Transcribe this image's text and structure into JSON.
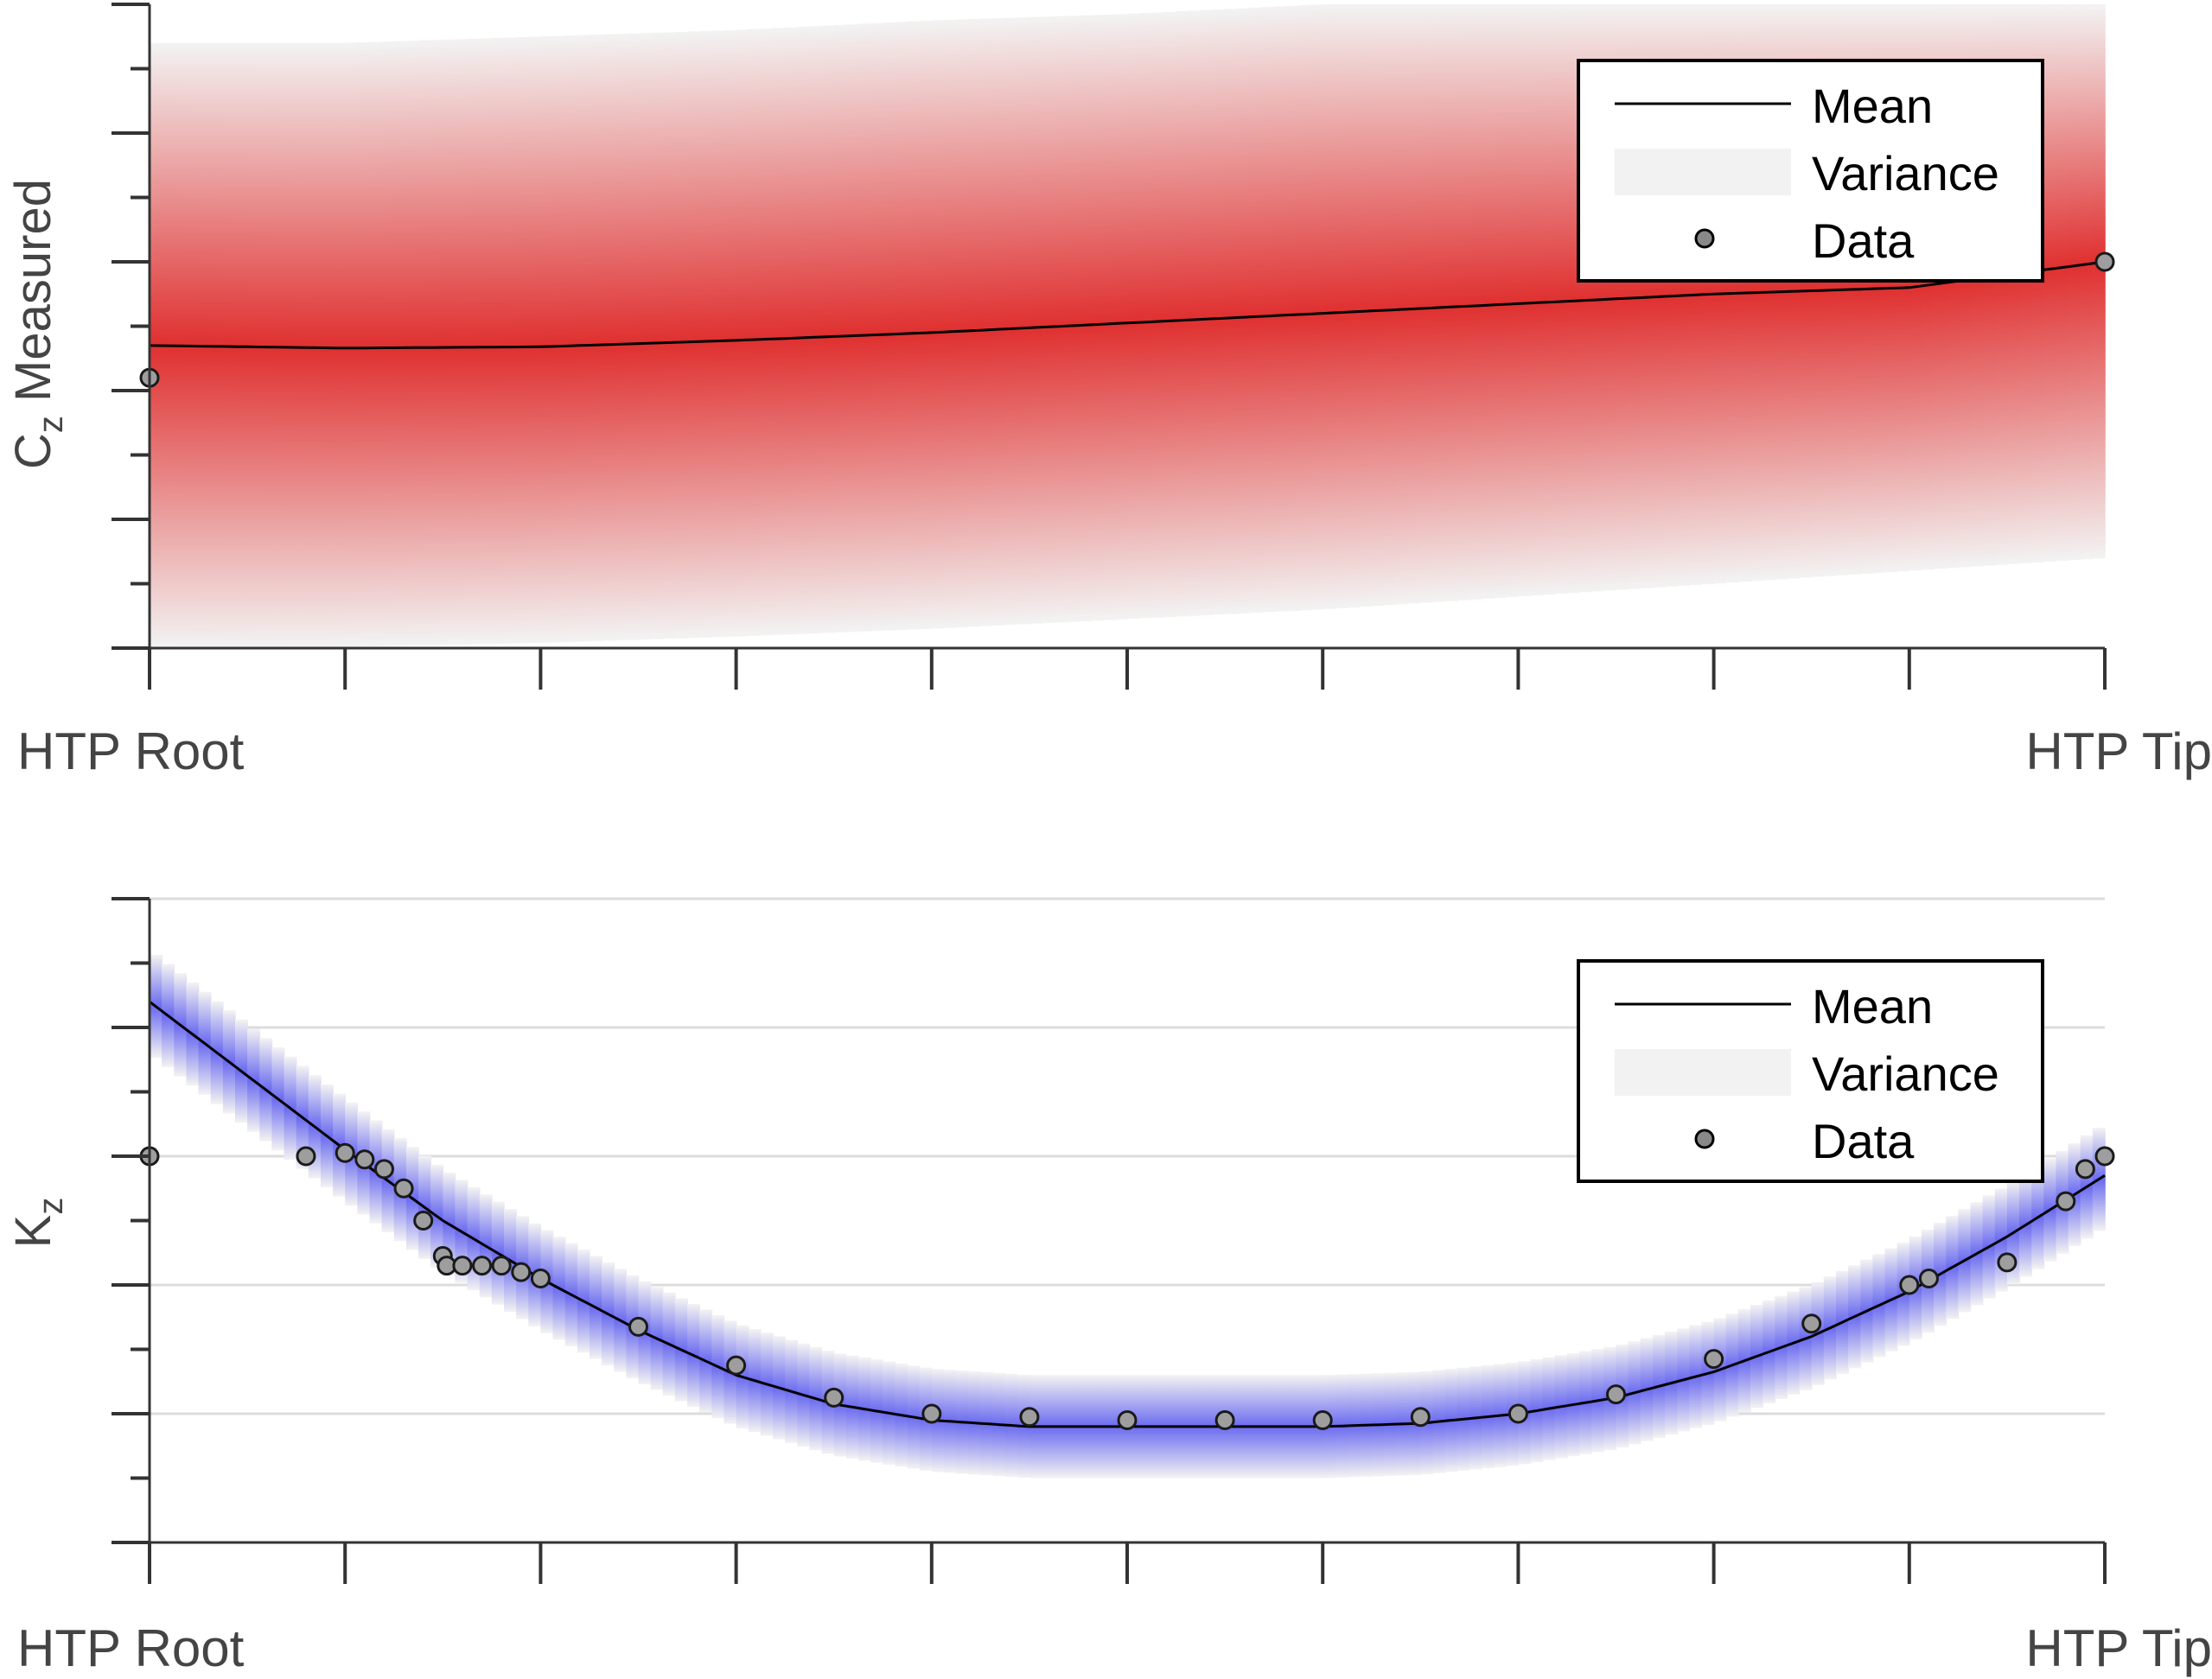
{
  "chart_data": [
    {
      "type": "line",
      "ylabel_main": "C",
      "ylabel_sub": "z",
      "ylabel_rest": " Measured",
      "x_tick_labels": [
        "HTP Root",
        "HTP Tip"
      ],
      "x_ticks": [
        0,
        0.1,
        0.2,
        0.3,
        0.4,
        0.5,
        0.6,
        0.7,
        0.8,
        0.9,
        1.0
      ],
      "y_ticks": [
        0,
        0.1,
        0.2,
        0.3,
        0.4,
        0.5,
        0.6,
        0.7,
        0.8,
        0.9,
        1.0
      ],
      "xlim": [
        0,
        1
      ],
      "ylim": [
        0,
        1
      ],
      "grid": false,
      "legend_position": "top-right",
      "legend": [
        "Mean",
        "Variance",
        "Data"
      ],
      "band_color": "#e03030",
      "series": [
        {
          "x": [
            0,
            0.1,
            0.2,
            0.3,
            0.4,
            0.5,
            0.6,
            0.7,
            0.8,
            0.9,
            1.0
          ],
          "mean": [
            0.47,
            0.466,
            0.468,
            0.478,
            0.49,
            0.505,
            0.52,
            0.535,
            0.55,
            0.56,
            0.6
          ],
          "lower": [
            0.0,
            0.002,
            0.008,
            0.018,
            0.03,
            0.045,
            0.06,
            0.08,
            0.1,
            0.12,
            0.14
          ],
          "upper": [
            0.94,
            0.94,
            0.95,
            0.96,
            0.975,
            0.985,
            1.0,
            1.0,
            1.0,
            1.0,
            1.0
          ]
        }
      ],
      "data_points": {
        "x": [
          0.0,
          1.0
        ],
        "y": [
          0.42,
          0.6
        ]
      }
    },
    {
      "type": "line",
      "ylabel_main": "K",
      "ylabel_sub": "z",
      "ylabel_rest": "",
      "x_tick_labels": [
        "HTP Root",
        "HTP Tip"
      ],
      "x_ticks": [
        0,
        0.1,
        0.2,
        0.3,
        0.4,
        0.5,
        0.6,
        0.7,
        0.8,
        0.9,
        1.0
      ],
      "y_ticks": [
        0,
        0.1,
        0.2,
        0.3,
        0.4,
        0.5,
        0.6,
        0.7,
        0.8,
        0.9,
        1.0
      ],
      "xlim": [
        0,
        1
      ],
      "ylim": [
        0,
        1
      ],
      "grid": true,
      "grid_y": [
        0.2,
        0.4,
        0.6,
        0.8,
        1.0
      ],
      "legend_position": "top-right",
      "legend": [
        "Mean",
        "Variance",
        "Data"
      ],
      "band_color": "#6b6bf0",
      "series": [
        {
          "x": [
            0,
            0.05,
            0.1,
            0.15,
            0.2,
            0.25,
            0.3,
            0.35,
            0.4,
            0.45,
            0.5,
            0.55,
            0.6,
            0.65,
            0.7,
            0.75,
            0.8,
            0.85,
            0.9,
            0.95,
            1.0
          ],
          "mean": [
            0.84,
            0.725,
            0.61,
            0.5,
            0.41,
            0.33,
            0.26,
            0.215,
            0.19,
            0.18,
            0.18,
            0.18,
            0.18,
            0.185,
            0.2,
            0.225,
            0.265,
            0.32,
            0.39,
            0.475,
            0.57
          ],
          "halfwidth": 0.08
        }
      ],
      "data_points": {
        "x": [
          0.0,
          0.08,
          0.1,
          0.11,
          0.12,
          0.13,
          0.14,
          0.15,
          0.152,
          0.16,
          0.17,
          0.18,
          0.19,
          0.2,
          0.25,
          0.3,
          0.35,
          0.4,
          0.45,
          0.5,
          0.55,
          0.6,
          0.65,
          0.7,
          0.75,
          0.8,
          0.85,
          0.9,
          0.91,
          0.95,
          0.98,
          0.99,
          1.0
        ],
        "y": [
          0.6,
          0.6,
          0.605,
          0.595,
          0.58,
          0.55,
          0.5,
          0.445,
          0.43,
          0.43,
          0.43,
          0.43,
          0.42,
          0.41,
          0.335,
          0.275,
          0.225,
          0.2,
          0.195,
          0.19,
          0.19,
          0.19,
          0.195,
          0.2,
          0.23,
          0.285,
          0.34,
          0.4,
          0.41,
          0.435,
          0.53,
          0.58,
          0.6
        ]
      }
    }
  ]
}
